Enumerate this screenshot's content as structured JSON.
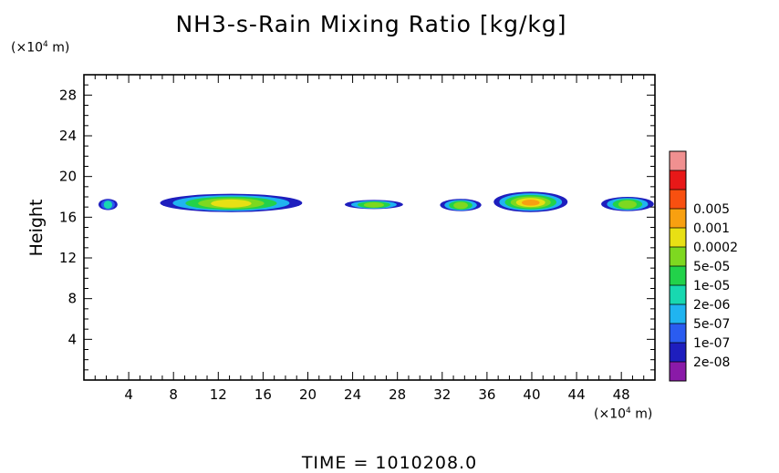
{
  "chart_data": {
    "type": "heatmap",
    "title": "NH3-s-Rain Mixing Ratio [kg/kg]",
    "ylabel": "Height",
    "y_unit": {
      "prefix": "(×10",
      "exp": "4",
      "suffix": " m)"
    },
    "x_unit": {
      "prefix": "(×10",
      "exp": "4",
      "suffix": " m)"
    },
    "xlim": [
      0,
      51
    ],
    "ylim": [
      0,
      30
    ],
    "x_ticks": [
      4,
      8,
      12,
      16,
      20,
      24,
      28,
      32,
      36,
      40,
      44,
      48
    ],
    "y_ticks": [
      4,
      8,
      12,
      16,
      20,
      24,
      28
    ],
    "colorbar": {
      "labels": [
        "2e-08",
        "1e-07",
        "5e-07",
        "2e-06",
        "1e-05",
        "5e-05",
        "0.0002",
        "0.001",
        "0.005"
      ],
      "colors": [
        "#8a1aa8",
        "#1e1ebe",
        "#2a5cf0",
        "#20b4f0",
        "#18d8b0",
        "#22d24a",
        "#7ed820",
        "#e8e014",
        "#f8a010",
        "#f85010",
        "#e81818",
        "#f09090"
      ]
    },
    "cells": [
      {
        "x": [
          1.3,
          3.0
        ],
        "y": [
          16.7,
          17.8
        ],
        "levels": [
          1,
          2,
          4
        ]
      },
      {
        "x": [
          6.8,
          19.5
        ],
        "y": [
          16.5,
          18.3
        ],
        "levels": [
          1,
          3,
          5,
          6,
          7
        ]
      },
      {
        "x": [
          23.3,
          28.5
        ],
        "y": [
          16.8,
          17.7
        ],
        "levels": [
          1,
          3,
          5,
          6
        ]
      },
      {
        "x": [
          31.8,
          35.5
        ],
        "y": [
          16.6,
          17.8
        ],
        "levels": [
          1,
          3,
          5,
          6
        ]
      },
      {
        "x": [
          36.6,
          43.2
        ],
        "y": [
          16.5,
          18.5
        ],
        "levels": [
          1,
          3,
          5,
          6,
          7,
          8
        ]
      },
      {
        "x": [
          46.2,
          50.9
        ],
        "y": [
          16.6,
          18.0
        ],
        "levels": [
          1,
          3,
          5,
          6
        ]
      }
    ]
  },
  "time_label": "TIME = 1010208.0"
}
